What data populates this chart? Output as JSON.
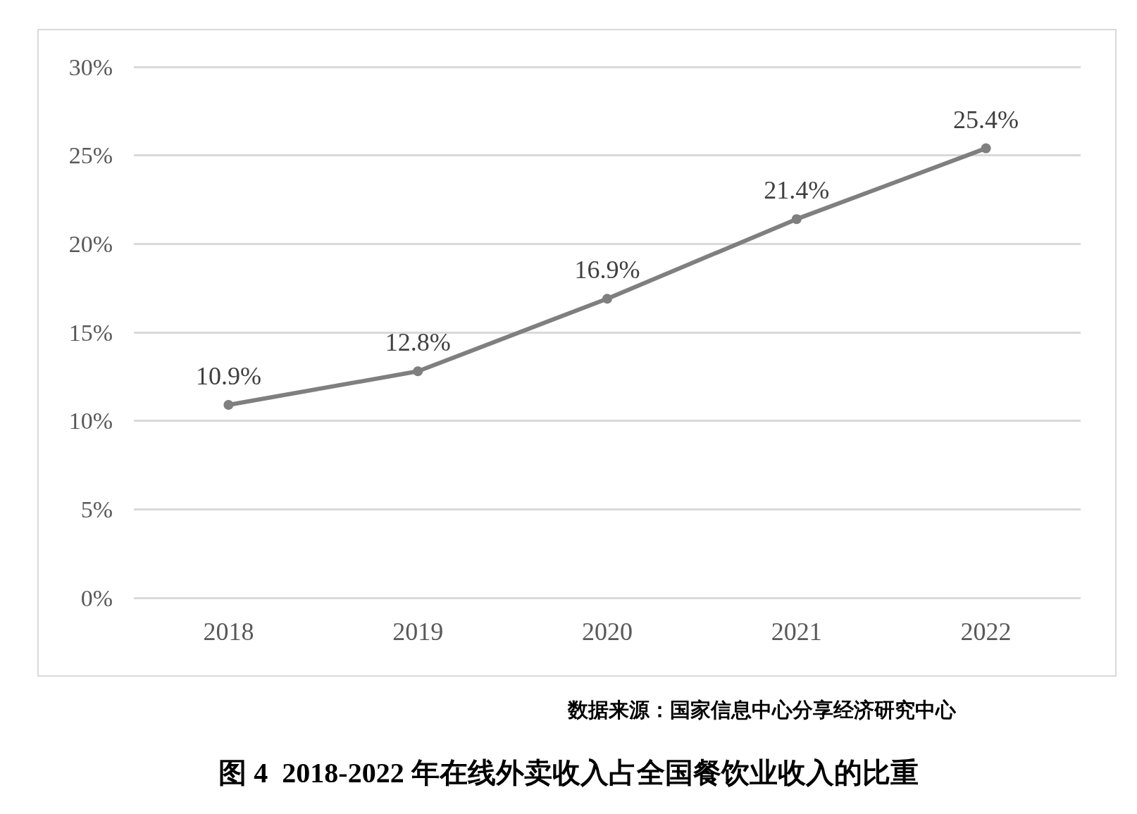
{
  "chart_data": {
    "type": "line",
    "title": "图 4  2018-2022 年在线外卖收入占全国餐饮业收入的比重",
    "annotations": [
      "数据来源：国家信息中心分享经济研究中心"
    ],
    "categories": [
      "2018",
      "2019",
      "2020",
      "2021",
      "2022"
    ],
    "series": [
      {
        "color": "#7f7f7f",
        "values": [
          10.9,
          12.8,
          16.9,
          21.4,
          25.4
        ],
        "value_labels": [
          "10.9%",
          "12.8%",
          "16.9%",
          "21.4%",
          "25.4%"
        ]
      }
    ],
    "ylim": [
      0,
      30
    ],
    "yticks": [
      {
        "value": 0,
        "label": "0%"
      },
      {
        "value": 5,
        "label": "5%"
      },
      {
        "value": 10,
        "label": "10%"
      },
      {
        "value": 15,
        "label": "15%"
      },
      {
        "value": 20,
        "label": "20%"
      },
      {
        "value": 25,
        "label": "25%"
      },
      {
        "value": 30,
        "label": "30%"
      }
    ],
    "grid": "y",
    "marker": "circle",
    "line_style": "solid"
  }
}
